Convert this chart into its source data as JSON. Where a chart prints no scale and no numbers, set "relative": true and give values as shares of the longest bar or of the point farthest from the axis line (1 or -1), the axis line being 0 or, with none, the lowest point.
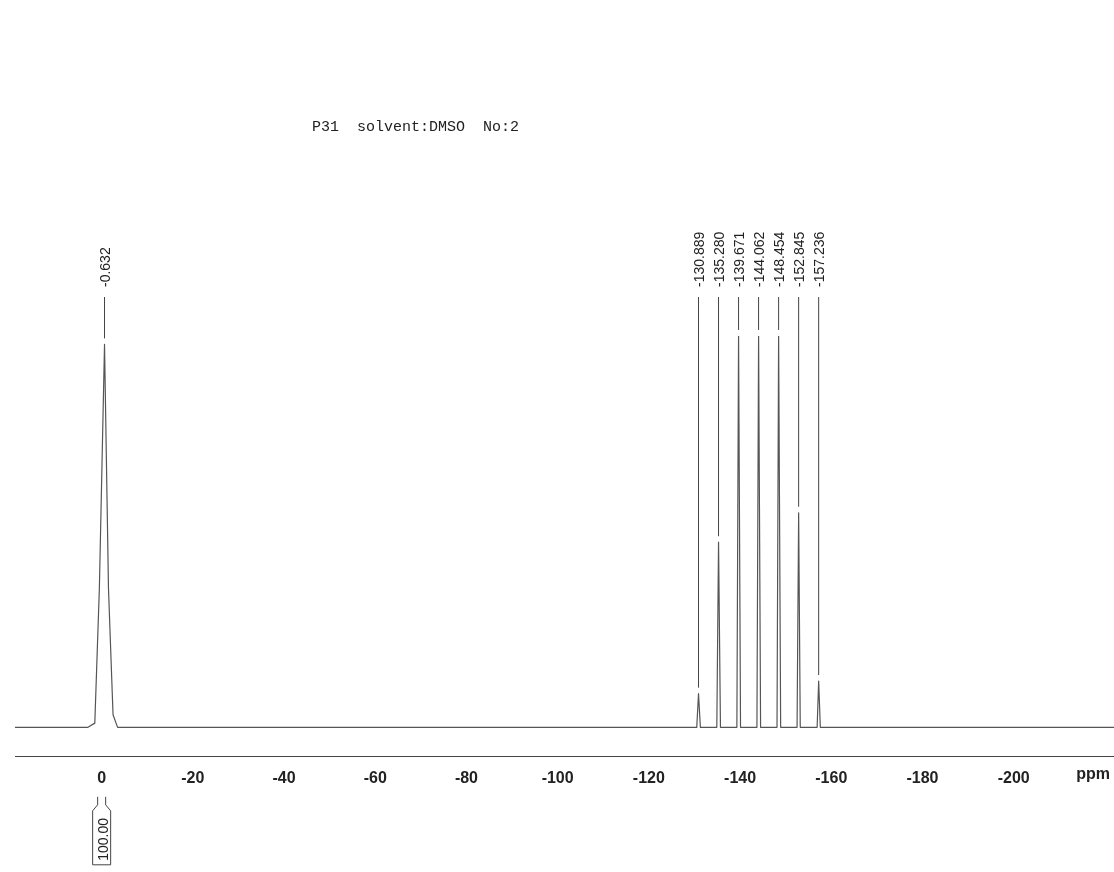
{
  "chart_data": {
    "type": "line",
    "title": "P31  solvent:DMSO  No:2",
    "xlabel": "ppm",
    "relative": true,
    "xlim": [
      19,
      -222
    ],
    "xticks": [
      0,
      -20,
      -40,
      -60,
      -80,
      -100,
      -120,
      -140,
      -160,
      -180,
      -200
    ],
    "grid": false,
    "legend": false,
    "marker": "none",
    "series": [
      {
        "color": "#555555",
        "x": [
          19,
          10,
          3,
          1.5,
          0.5,
          -0.632,
          -1.5,
          -2.5,
          -3.5,
          -20,
          -50,
          -80,
          -110,
          -130.5,
          -130.889,
          -131.3,
          -134.9,
          -135.28,
          -135.7,
          -139.3,
          -139.671,
          -140.1,
          -143.7,
          -144.062,
          -144.5,
          -148.1,
          -148.454,
          -148.9,
          -152.5,
          -152.845,
          -153.2,
          -156.9,
          -157.236,
          -157.6,
          -180,
          -200,
          -222
        ],
        "values": [
          0.07,
          0.07,
          0.07,
          0.08,
          0.4,
          0.98,
          0.4,
          0.1,
          0.07,
          0.07,
          0.07,
          0.07,
          0.07,
          0.07,
          0.15,
          0.07,
          0.07,
          0.51,
          0.07,
          0.07,
          1,
          0.07,
          0.07,
          1,
          0.07,
          0.07,
          1,
          0.07,
          0.07,
          0.58,
          0.07,
          0.07,
          0.18,
          0.07,
          0.07,
          0.07,
          0.07
        ]
      }
    ],
    "annotations": [
      {
        "text": "-0.632",
        "x": -0.632,
        "y": 0.98
      },
      {
        "text": "-130.889",
        "x": -130.889,
        "y": 0.15
      },
      {
        "text": "-135.280",
        "x": -135.28,
        "y": 0.51
      },
      {
        "text": "-139.671",
        "x": -139.671,
        "y": 1
      },
      {
        "text": "-144.062",
        "x": -144.062,
        "y": 1
      },
      {
        "text": "-148.454",
        "x": -148.454,
        "y": 1
      },
      {
        "text": "-152.845",
        "x": -152.845,
        "y": 0.58
      },
      {
        "text": "-157.236",
        "x": -157.236,
        "y": 0.18
      },
      "100.00"
    ]
  }
}
